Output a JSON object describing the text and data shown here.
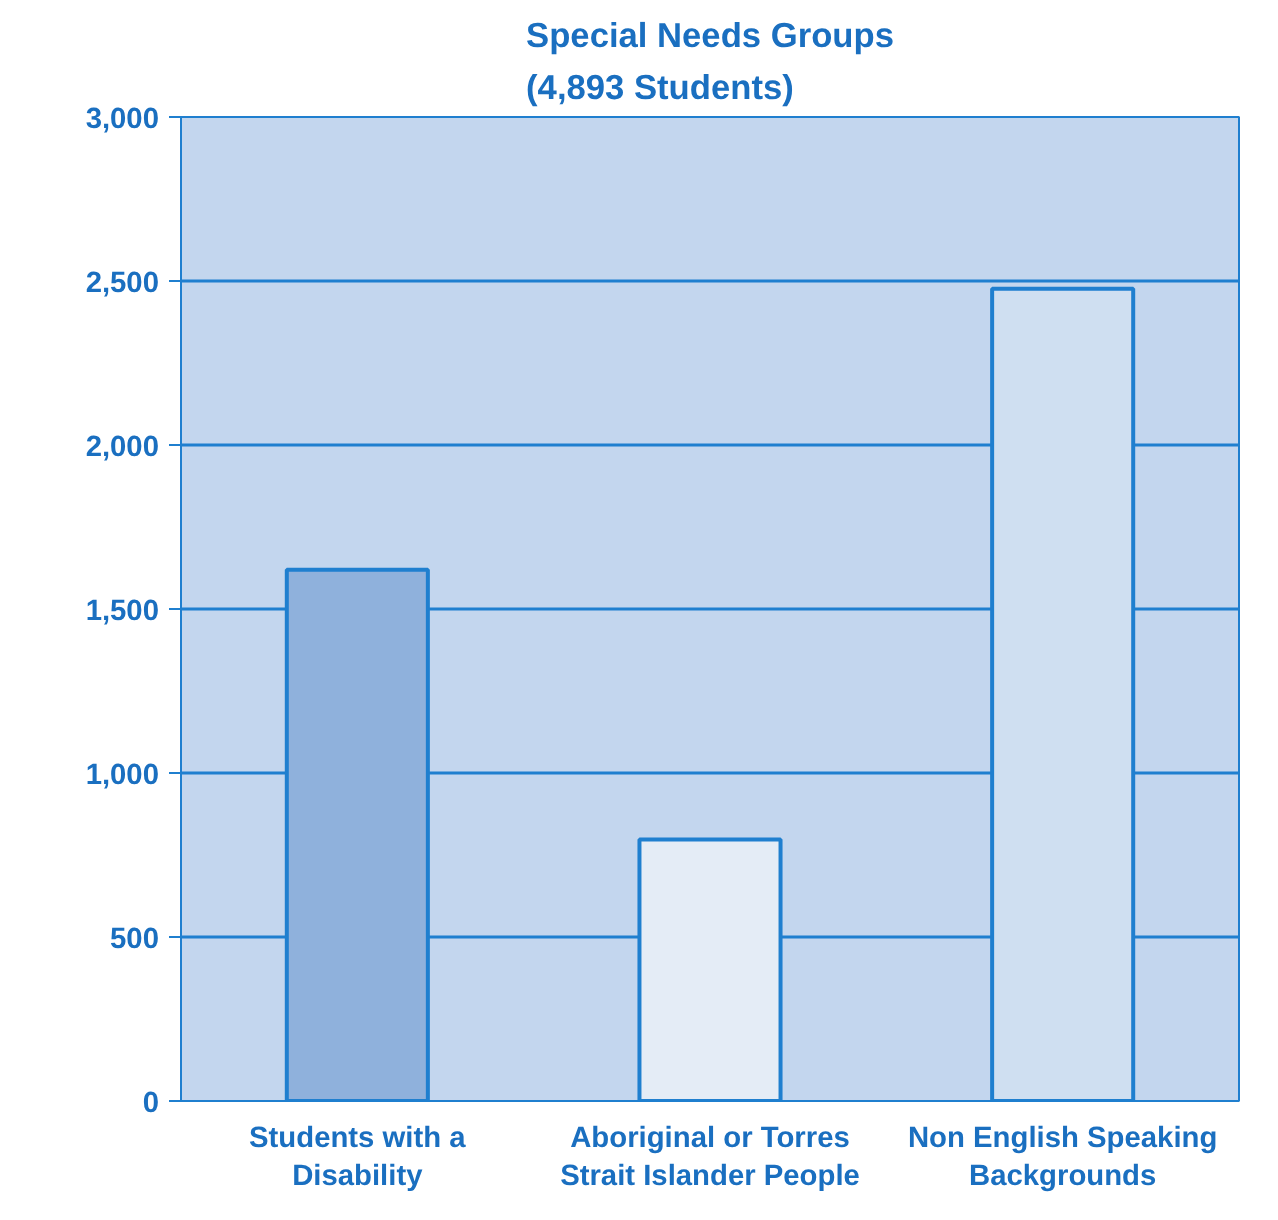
{
  "chart_data": {
    "type": "bar",
    "title": "Special Needs Groups\n(4,893 Students)",
    "categories": [
      "Students with a\nDisability",
      "Aboriginal or Torres\nStrait Islander People",
      "Non English Speaking\nBackgrounds"
    ],
    "values": [
      1620,
      797,
      2476
    ],
    "colors": [
      "#8fb1dc",
      "#e4ecf6",
      "#cfdff1"
    ],
    "ylim": [
      0,
      3000
    ],
    "yticks": [
      {
        "value": 0,
        "label": "0"
      },
      {
        "value": 500,
        "label": "500"
      },
      {
        "value": 1000,
        "label": "1,000"
      },
      {
        "value": 1500,
        "label": "1,500"
      },
      {
        "value": 2000,
        "label": "2,000"
      },
      {
        "value": 2500,
        "label": "2,500"
      },
      {
        "value": 3000,
        "label": "3,000"
      }
    ],
    "grid": "y"
  }
}
